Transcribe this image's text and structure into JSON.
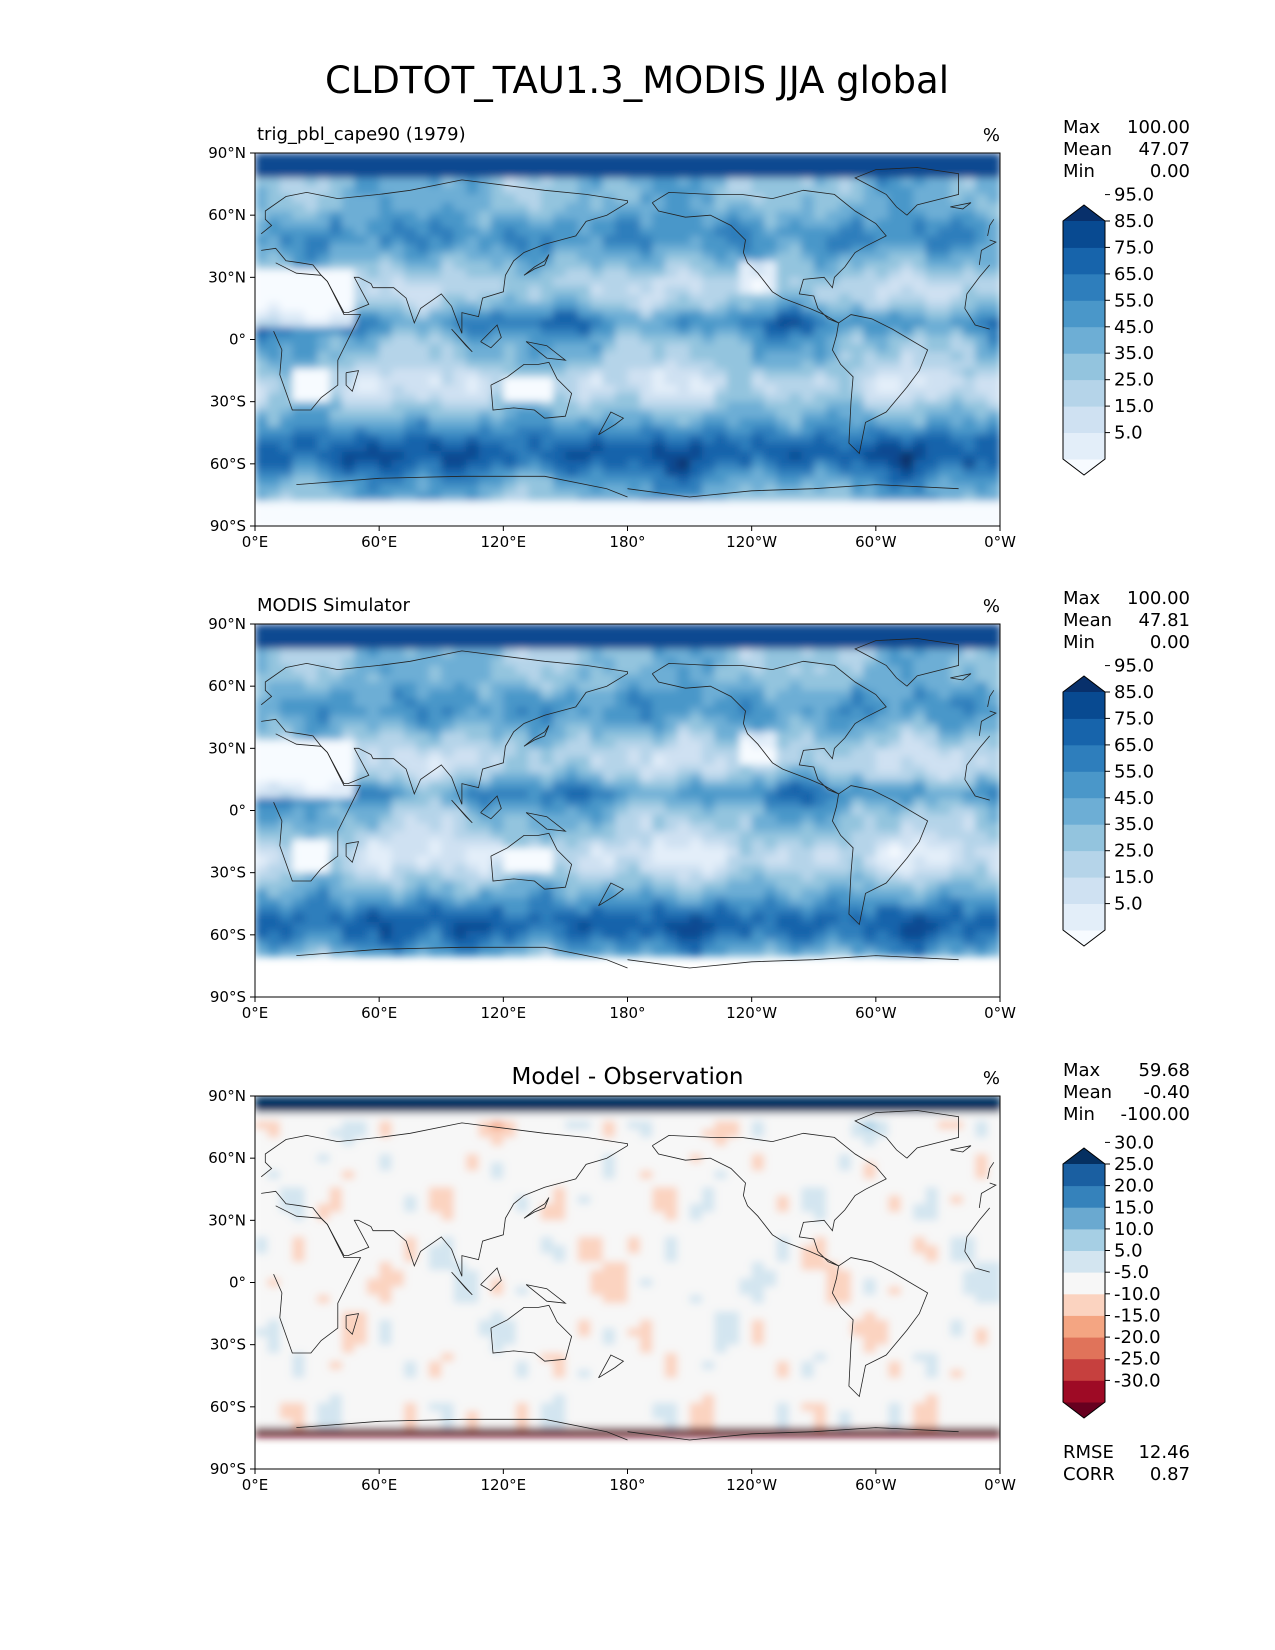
{
  "figure": {
    "title": "CLDTOT_TAU1.3_MODIS JJA global"
  },
  "chart_data": [
    {
      "type": "heatmap",
      "map": "global-contour",
      "left_title": "trig_pbl_cape90 (1979)",
      "center_title": "",
      "units": "%",
      "stats": [
        {
          "label": "Max",
          "value": "100.00"
        },
        {
          "label": "Mean",
          "value": "47.07"
        },
        {
          "label": "Min",
          "value": "0.00"
        }
      ],
      "footer_stats": [],
      "colorbar": {
        "colors": [
          "#f7fbff",
          "#e3eef9",
          "#cfe1f2",
          "#b5d4e9",
          "#93c4de",
          "#6daed5",
          "#4a97c9",
          "#2e7ebc",
          "#1764ab",
          "#084a91",
          "#08306b"
        ],
        "labels": [
          "5.0",
          "15.0",
          "25.0",
          "35.0",
          "45.0",
          "55.0",
          "65.0",
          "75.0",
          "85.0",
          "95.0"
        ]
      },
      "xticks": [
        "0°E",
        "60°E",
        "120°E",
        "180°",
        "120°W",
        "60°W",
        "0°W"
      ],
      "yticks": [
        "90°N",
        "60°N",
        "30°N",
        "0°",
        "30°S",
        "60°S",
        "90°S"
      ],
      "field": "model"
    },
    {
      "type": "heatmap",
      "map": "global-contour",
      "left_title": "MODIS Simulator",
      "center_title": "",
      "units": "%",
      "stats": [
        {
          "label": "Max",
          "value": "100.00"
        },
        {
          "label": "Mean",
          "value": "47.81"
        },
        {
          "label": "Min",
          "value": "0.00"
        }
      ],
      "footer_stats": [],
      "colorbar": {
        "colors": [
          "#f7fbff",
          "#e3eef9",
          "#cfe1f2",
          "#b5d4e9",
          "#93c4de",
          "#6daed5",
          "#4a97c9",
          "#2e7ebc",
          "#1764ab",
          "#084a91",
          "#08306b"
        ],
        "labels": [
          "5.0",
          "15.0",
          "25.0",
          "35.0",
          "45.0",
          "55.0",
          "65.0",
          "75.0",
          "85.0",
          "95.0"
        ]
      },
      "xticks": [
        "0°E",
        "60°E",
        "120°E",
        "180°",
        "120°W",
        "60°W",
        "0°W"
      ],
      "yticks": [
        "90°N",
        "60°N",
        "30°N",
        "0°",
        "30°S",
        "60°S",
        "90°S"
      ],
      "field": "obs"
    },
    {
      "type": "heatmap",
      "map": "global-contour",
      "left_title": "",
      "center_title": "Model - Observation",
      "units": "%",
      "stats": [
        {
          "label": "Max",
          "value": "59.68"
        },
        {
          "label": "Mean",
          "value": "-0.40"
        },
        {
          "label": "Min",
          "value": "-100.00"
        }
      ],
      "footer_stats": [
        {
          "label": "RMSE",
          "value": "12.46"
        },
        {
          "label": "CORR",
          "value": "0.87"
        }
      ],
      "colorbar": {
        "colors": [
          "#67001f",
          "#9e0a25",
          "#c6403e",
          "#e0735a",
          "#f4a582",
          "#fbd3c0",
          "#f7f7f7",
          "#d3e5f0",
          "#a6cfe4",
          "#6aa9d0",
          "#3582bb",
          "#1a5fa1",
          "#053061"
        ],
        "labels": [
          "-30.0",
          "-25.0",
          "-20.0",
          "-15.0",
          "-10.0",
          "-5.0",
          "5.0",
          "10.0",
          "15.0",
          "20.0",
          "25.0",
          "30.0"
        ]
      },
      "xticks": [
        "0°E",
        "60°E",
        "120°E",
        "180°",
        "120°W",
        "60°W",
        "0°W"
      ],
      "yticks": [
        "90°N",
        "60°N",
        "30°N",
        "0°",
        "30°S",
        "60°S",
        "90°S"
      ],
      "field": "diff"
    }
  ]
}
